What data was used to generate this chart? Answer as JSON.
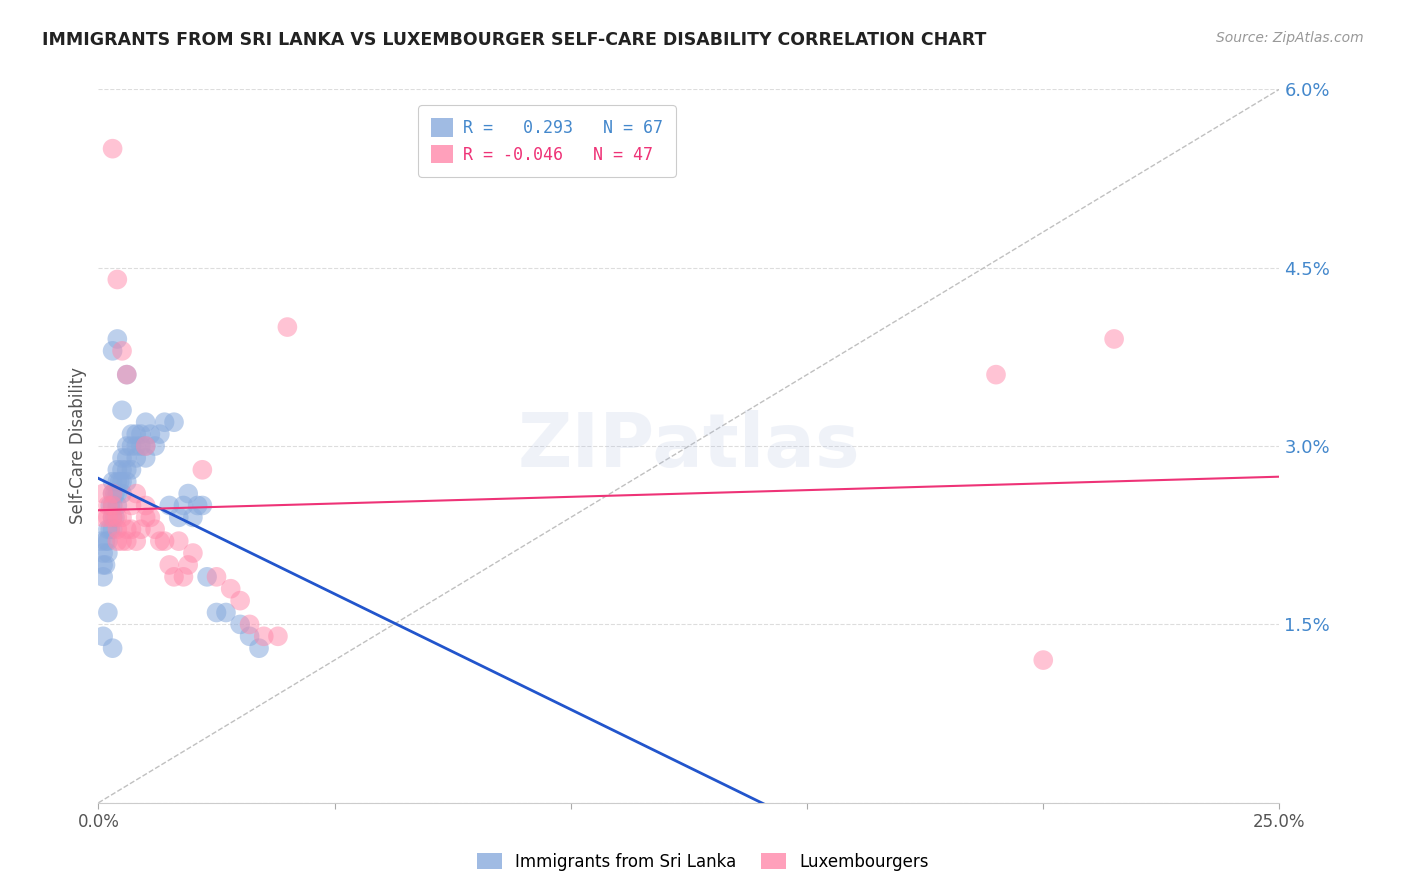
{
  "title": "IMMIGRANTS FROM SRI LANKA VS LUXEMBOURGER SELF-CARE DISABILITY CORRELATION CHART",
  "source": "Source: ZipAtlas.com",
  "ylabel": "Self-Care Disability",
  "xlim": [
    0.0,
    0.25
  ],
  "ylim": [
    0.0,
    0.06
  ],
  "xtick_positions": [
    0.0,
    0.05,
    0.1,
    0.15,
    0.2,
    0.25
  ],
  "xtick_labels": [
    "0.0%",
    "",
    "",
    "",
    "",
    "25.0%"
  ],
  "ytick_positions": [
    0.0,
    0.015,
    0.03,
    0.045,
    0.06
  ],
  "ytick_labels_right": [
    "",
    "1.5%",
    "3.0%",
    "4.5%",
    "6.0%"
  ],
  "color_blue": "#88AADD",
  "color_pink": "#FF88AA",
  "color_blue_line": "#2255CC",
  "color_pink_line": "#EE3377",
  "watermark": "ZIPatlas",
  "legend_label1": "Immigrants from Sri Lanka",
  "legend_label2": "Luxembourgers",
  "r_blue": "0.293",
  "n_blue": "67",
  "r_pink": "-0.046",
  "n_pink": "47",
  "blue_x": [
    0.0005,
    0.001,
    0.001,
    0.001,
    0.0015,
    0.0015,
    0.002,
    0.002,
    0.002,
    0.0025,
    0.0025,
    0.003,
    0.003,
    0.003,
    0.003,
    0.003,
    0.0035,
    0.0035,
    0.004,
    0.004,
    0.004,
    0.004,
    0.0045,
    0.005,
    0.005,
    0.005,
    0.005,
    0.006,
    0.006,
    0.006,
    0.006,
    0.007,
    0.007,
    0.007,
    0.008,
    0.008,
    0.008,
    0.009,
    0.009,
    0.01,
    0.01,
    0.01,
    0.011,
    0.012,
    0.013,
    0.014,
    0.015,
    0.016,
    0.017,
    0.018,
    0.019,
    0.02,
    0.021,
    0.022,
    0.023,
    0.025,
    0.027,
    0.03,
    0.032,
    0.034,
    0.001,
    0.002,
    0.003,
    0.003,
    0.004,
    0.005,
    0.006
  ],
  "blue_y": [
    0.022,
    0.019,
    0.02,
    0.021,
    0.02,
    0.022,
    0.022,
    0.021,
    0.023,
    0.023,
    0.025,
    0.024,
    0.025,
    0.026,
    0.027,
    0.023,
    0.024,
    0.026,
    0.025,
    0.026,
    0.028,
    0.027,
    0.027,
    0.026,
    0.027,
    0.028,
    0.029,
    0.027,
    0.028,
    0.029,
    0.03,
    0.028,
    0.03,
    0.031,
    0.029,
    0.03,
    0.031,
    0.03,
    0.031,
    0.029,
    0.03,
    0.032,
    0.031,
    0.03,
    0.031,
    0.032,
    0.025,
    0.032,
    0.024,
    0.025,
    0.026,
    0.024,
    0.025,
    0.025,
    0.019,
    0.016,
    0.016,
    0.015,
    0.014,
    0.013,
    0.014,
    0.016,
    0.013,
    0.038,
    0.039,
    0.033,
    0.036
  ],
  "pink_x": [
    0.001,
    0.001,
    0.002,
    0.002,
    0.003,
    0.003,
    0.003,
    0.004,
    0.004,
    0.004,
    0.005,
    0.005,
    0.006,
    0.006,
    0.007,
    0.007,
    0.008,
    0.009,
    0.01,
    0.01,
    0.011,
    0.012,
    0.013,
    0.014,
    0.015,
    0.016,
    0.017,
    0.018,
    0.019,
    0.02,
    0.022,
    0.025,
    0.028,
    0.03,
    0.032,
    0.035,
    0.038,
    0.04,
    0.003,
    0.004,
    0.005,
    0.006,
    0.008,
    0.01,
    0.2,
    0.215,
    0.19
  ],
  "pink_y": [
    0.026,
    0.024,
    0.025,
    0.024,
    0.025,
    0.024,
    0.026,
    0.023,
    0.024,
    0.022,
    0.024,
    0.022,
    0.023,
    0.022,
    0.023,
    0.025,
    0.022,
    0.023,
    0.024,
    0.025,
    0.024,
    0.023,
    0.022,
    0.022,
    0.02,
    0.019,
    0.022,
    0.019,
    0.02,
    0.021,
    0.028,
    0.019,
    0.018,
    0.017,
    0.015,
    0.014,
    0.014,
    0.04,
    0.055,
    0.044,
    0.038,
    0.036,
    0.026,
    0.03,
    0.012,
    0.039,
    0.036
  ]
}
